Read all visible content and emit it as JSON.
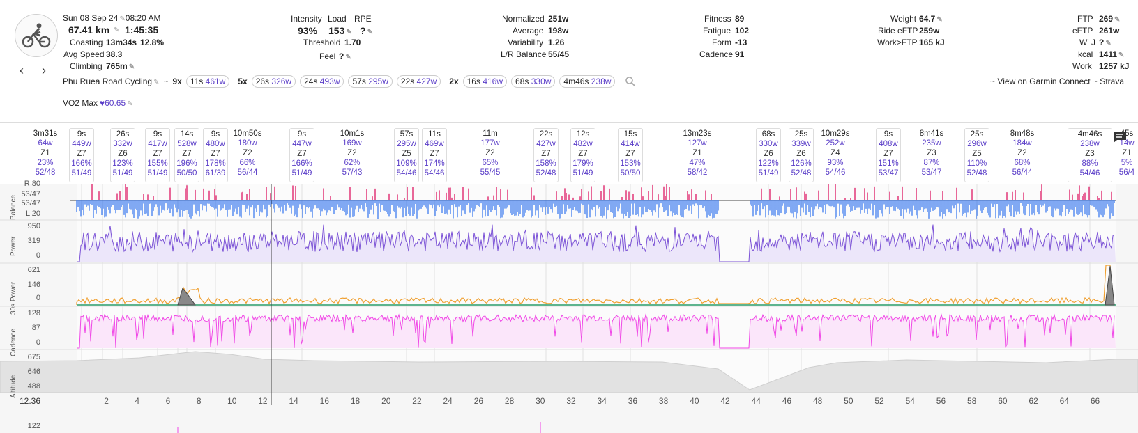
{
  "activity": {
    "date": "Sun 08 Sep 24",
    "time": "08:20 AM",
    "distance": "67.41 km",
    "duration": "1:45:35",
    "coasting_label": "Coasting",
    "coasting_time": "13m34s",
    "coasting_pct": "12.8%",
    "avg_speed_label": "Avg Speed",
    "avg_speed": "38.3",
    "climbing_label": "Climbing",
    "climbing": "765m",
    "name": "Phu Ruea Road Cycling",
    "name_sep": "~",
    "vo2_label": "VO2 Max",
    "vo2_value": "60.65"
  },
  "load": {
    "intensity_label": "Intensity",
    "load_label": "Load",
    "rpe_label": "RPE",
    "intensity": "93%",
    "load": "153",
    "rpe": "?",
    "threshold_label": "Threshold",
    "threshold": "1.70",
    "feel_label": "Feel",
    "feel": "?"
  },
  "power": {
    "normalized_label": "Normalized",
    "normalized": "251w",
    "average_label": "Average",
    "average": "198w",
    "variability_label": "Variability",
    "variability": "1.26",
    "lr_label": "L/R Balance",
    "lr": "55/45"
  },
  "fitness": {
    "fitness_label": "Fitness",
    "fitness": "89",
    "fatigue_label": "Fatigue",
    "fatigue": "102",
    "form_label": "Form",
    "form": "-13",
    "cadence_label": "Cadence",
    "cadence": "91"
  },
  "weight": {
    "weight_label": "Weight",
    "weight": "64.7",
    "ride_eftp_label": "Ride eFTP",
    "ride_eftp": "259w",
    "work_ftp_label": "Work>FTP",
    "work_ftp": "165 kJ"
  },
  "ftp": {
    "ftp_label": "FTP",
    "ftp": "269",
    "eftp_label": "eFTP",
    "eftp": "261w",
    "wj_label": "W' J",
    "wj": "?",
    "kcal_label": "kcal",
    "kcal": "1411",
    "work_label": "Work",
    "work": "1257 kJ"
  },
  "chips": [
    {
      "mult": "9x",
      "items": [
        {
          "d": "11s",
          "p": "461w"
        }
      ]
    },
    {
      "mult": "5x",
      "items": [
        {
          "d": "26s",
          "p": "326w"
        },
        {
          "d": "24s",
          "p": "493w"
        },
        {
          "d": "57s",
          "p": "295w"
        },
        {
          "d": "22s",
          "p": "427w"
        }
      ]
    },
    {
      "mult": "2x",
      "items": [
        {
          "d": "16s",
          "p": "416w"
        },
        {
          "d": "68s",
          "p": "330w"
        },
        {
          "d": "4m46s",
          "p": "238w"
        }
      ]
    }
  ],
  "links": {
    "garmin": "~ View on Garmin Connect",
    "strava": "~ Strava"
  },
  "intervals": [
    {
      "d": "3m31s",
      "w": "64w",
      "z": "Z1",
      "pc": "23%",
      "lr": "52/48",
      "box": false
    },
    {
      "d": "9s",
      "w": "449w",
      "z": "Z7",
      "pc": "166%",
      "lr": "51/49",
      "box": true
    },
    {
      "d": "26s",
      "w": "332w",
      "z": "Z6",
      "pc": "123%",
      "lr": "51/49",
      "box": true
    },
    {
      "d": "9s",
      "w": "417w",
      "z": "Z7",
      "pc": "155%",
      "lr": "51/49",
      "box": true
    },
    {
      "d": "14s",
      "w": "528w",
      "z": "Z7",
      "pc": "196%",
      "lr": "50/50",
      "box": true
    },
    {
      "d": "9s",
      "w": "480w",
      "z": "Z7",
      "pc": "178%",
      "lr": "61/39",
      "box": true
    },
    {
      "d": "10m50s",
      "w": "180w",
      "z": "Z2",
      "pc": "66%",
      "lr": "56/44",
      "box": false
    },
    {
      "d": "9s",
      "w": "447w",
      "z": "Z7",
      "pc": "166%",
      "lr": "51/49",
      "box": true
    },
    {
      "d": "10m1s",
      "w": "169w",
      "z": "Z2",
      "pc": "62%",
      "lr": "57/43",
      "box": false
    },
    {
      "d": "57s",
      "w": "295w",
      "z": "Z5",
      "pc": "109%",
      "lr": "54/46",
      "box": true
    },
    {
      "d": "11s",
      "w": "469w",
      "z": "Z7",
      "pc": "174%",
      "lr": "54/46",
      "box": true
    },
    {
      "d": "11m",
      "w": "177w",
      "z": "Z2",
      "pc": "65%",
      "lr": "55/45",
      "box": false
    },
    {
      "d": "22s",
      "w": "427w",
      "z": "Z7",
      "pc": "158%",
      "lr": "52/48",
      "box": true
    },
    {
      "d": "12s",
      "w": "482w",
      "z": "Z7",
      "pc": "179%",
      "lr": "51/49",
      "box": true
    },
    {
      "d": "15s",
      "w": "414w",
      "z": "Z7",
      "pc": "153%",
      "lr": "50/50",
      "box": true
    },
    {
      "d": "13m23s",
      "w": "127w",
      "z": "Z1",
      "pc": "47%",
      "lr": "58/42",
      "box": false
    },
    {
      "d": "68s",
      "w": "330w",
      "z": "Z6",
      "pc": "122%",
      "lr": "51/49",
      "box": true
    },
    {
      "d": "25s",
      "w": "339w",
      "z": "Z6",
      "pc": "126%",
      "lr": "52/48",
      "box": true
    },
    {
      "d": "10m29s",
      "w": "252w",
      "z": "Z4",
      "pc": "93%",
      "lr": "54/46",
      "box": false
    },
    {
      "d": "9s",
      "w": "408w",
      "z": "Z7",
      "pc": "151%",
      "lr": "53/47",
      "box": true
    },
    {
      "d": "8m41s",
      "w": "235w",
      "z": "Z3",
      "pc": "87%",
      "lr": "53/47",
      "box": false
    },
    {
      "d": "25s",
      "w": "296w",
      "z": "Z5",
      "pc": "110%",
      "lr": "52/48",
      "box": true
    },
    {
      "d": "8m48s",
      "w": "184w",
      "z": "Z2",
      "pc": "68%",
      "lr": "56/44",
      "box": false
    },
    {
      "d": "4m46s",
      "w": "238w",
      "z": "Z3",
      "pc": "88%",
      "lr": "54/46",
      "box": true
    },
    {
      "d": "45s",
      "w": "14w",
      "z": "Z1",
      "pc": "5%",
      "lr": "56/4",
      "box": false
    }
  ],
  "charts": {
    "balance_label": "Balance",
    "balance_r": "R 80",
    "balance_v1": "53/47",
    "balance_v2": "53/47",
    "balance_l": "L 20",
    "power_label": "Power",
    "power_max": "950",
    "power_avg": "319",
    "power_min": "0",
    "p30_label": "30s Power",
    "p30_max": "621",
    "p30_avg": "146",
    "p30_min": "0",
    "cad_label": "Cadence",
    "cad_max": "128",
    "cad_avg": "87",
    "cad_min": "0",
    "alt_label": "Altitude",
    "alt_max": "675",
    "alt_avg": "646",
    "alt_min": "488",
    "x_cursor": "12.36",
    "x_ticks": [
      "2",
      "4",
      "6",
      "8",
      "10",
      "12",
      "14",
      "16",
      "18",
      "20",
      "22",
      "24",
      "26",
      "28",
      "30",
      "32",
      "34",
      "36",
      "38",
      "40",
      "42",
      "44",
      "46",
      "48",
      "50",
      "52",
      "54",
      "56",
      "58",
      "60",
      "62",
      "64",
      "66"
    ],
    "next_max": "122"
  },
  "colors": {
    "accent": "#5a3dc8",
    "power": "#7b52d6",
    "cadence": "#f046e6",
    "balance_right": "#e0286e",
    "balance_left": "#4d86f0"
  }
}
